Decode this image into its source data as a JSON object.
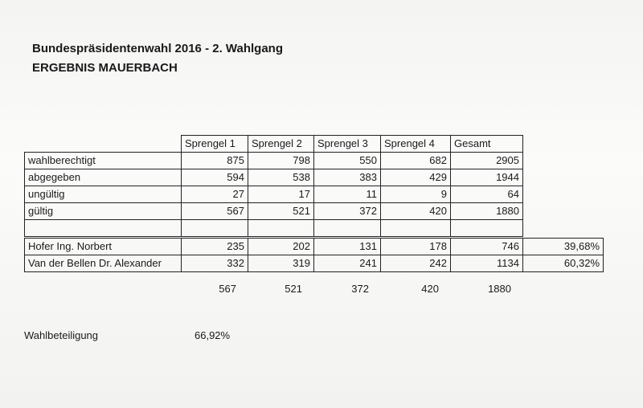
{
  "header": {
    "title": "Bundespräsidentenwahl 2016  -  2. Wahlgang",
    "subtitle": "ERGEBNIS  MAUERBACH"
  },
  "table": {
    "columns": [
      "Sprengel 1",
      "Sprengel 2",
      "Sprengel 3",
      "Sprengel 4",
      "Gesamt"
    ],
    "rows": [
      [
        "wahlberechtigt",
        "875",
        "798",
        "550",
        "682",
        "2905"
      ],
      [
        "abgegeben",
        "594",
        "538",
        "383",
        "429",
        "1944"
      ],
      [
        "ungültig",
        "27",
        "17",
        "11",
        "9",
        "64"
      ],
      [
        "gültig",
        "567",
        "521",
        "372",
        "420",
        "1880"
      ]
    ],
    "candidates": [
      [
        "Hofer Ing. Norbert",
        "235",
        "202",
        "131",
        "178",
        "746",
        "39,68%"
      ],
      [
        "Van der Bellen Dr. Alexander",
        "332",
        "319",
        "241",
        "242",
        "1134",
        "60,32%"
      ]
    ],
    "totals": [
      "567",
      "521",
      "372",
      "420",
      "1880"
    ]
  },
  "turnout": {
    "label": "Wahlbeteiligung",
    "value": "66,92%"
  }
}
